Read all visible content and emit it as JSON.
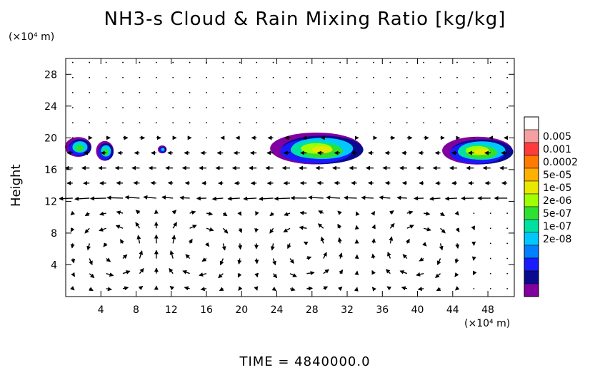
{
  "chart_data": {
    "type": "heatmap",
    "title": "NH3-s Cloud & Rain Mixing Ratio [kg/kg]",
    "ylabel": "Height",
    "y_unit_label": "(×10⁴ m)",
    "x_unit_label": "(×10⁴ m)",
    "xlim": [
      0,
      51
    ],
    "ylim": [
      0,
      30
    ],
    "x_ticks": [
      "4",
      "8",
      "12",
      "16",
      "20",
      "24",
      "28",
      "32",
      "36",
      "40",
      "44",
      "48"
    ],
    "y_ticks": [
      "4",
      "8",
      "12",
      "16",
      "20",
      "24",
      "28"
    ],
    "colorbar": {
      "labels": [
        "0.005",
        "0.001",
        "0.0002",
        "5e-05",
        "1e-05",
        "2e-06",
        "5e-07",
        "1e-07",
        "2e-08"
      ],
      "colors": [
        "#ffffff",
        "#f4a0a0",
        "#ff3b3b",
        "#ff7a00",
        "#ffb000",
        "#e8e800",
        "#a0ff00",
        "#30e030",
        "#00e0a0",
        "#00c8ff",
        "#0080ff",
        "#1a1aff",
        "#0a0a90",
        "#8000a0"
      ]
    },
    "cloud_regions": [
      {
        "x": [
          0,
          3
        ],
        "y": [
          17.5,
          20
        ]
      },
      {
        "x": [
          3.5,
          5.5
        ],
        "y": [
          17,
          19.5
        ]
      },
      {
        "x": [
          10.5,
          11.5
        ],
        "y": [
          18,
          19
        ]
      },
      {
        "x": [
          23.5,
          34
        ],
        "y": [
          16.5,
          20.5
        ]
      },
      {
        "x": [
          43,
          51
        ],
        "y": [
          16.5,
          20
        ]
      }
    ],
    "wind_field": "vector arrows on 1.9 x 1.9 (x10^4 m) grid; strong westward jet near 13 and 17; overturning cells near 5, 15, 27, 40 at low levels"
  },
  "footer": "TIME = 4840000.0"
}
